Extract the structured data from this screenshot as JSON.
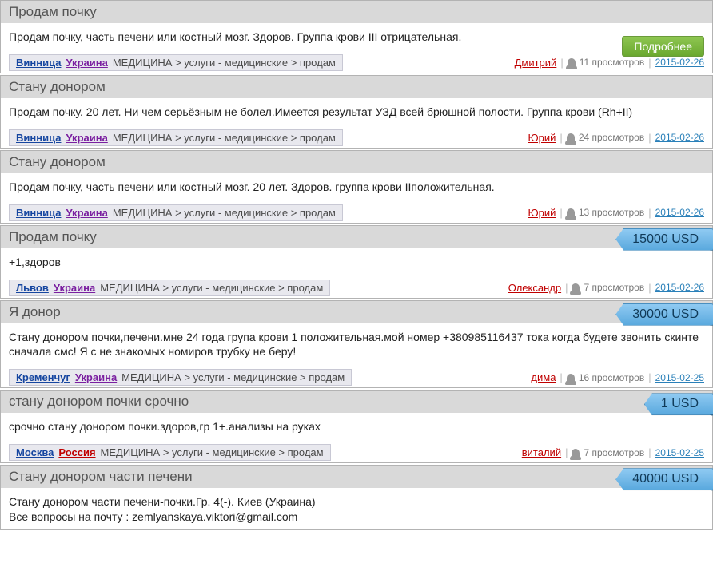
{
  "more_label": "Подробнее",
  "colors": {
    "country_ua": "#7a1fa0",
    "country_ru": "#c00000"
  },
  "listings": [
    {
      "title": "Продам почку",
      "desc": "Продам почку, часть печени или костный мозг. Здоров. Группа крови III отрицательная.",
      "city": "Винница",
      "country": "Украина",
      "country_color": "#7a1fa0",
      "category": "МЕДИЦИНА > услуги - медицинские > продам",
      "author": "Дмитрий",
      "views": "11 просмотров",
      "date": "2015-02-26",
      "show_more": true,
      "price": null
    },
    {
      "title": "Стану донором",
      "desc": "Продам почку. 20 лет. Ни чем серьёзным не болел.Имеется результат УЗД всей брюшной полости. Группа крови (Rh+II)",
      "city": "Винница",
      "country": "Украина",
      "country_color": "#7a1fa0",
      "category": "МЕДИЦИНА > услуги - медицинские > продам",
      "author": "Юрий",
      "views": "24 просмотров",
      "date": "2015-02-26",
      "show_more": false,
      "price": null
    },
    {
      "title": "Стану донором",
      "desc": "Продам почку, часть печени или костный мозг. 20 лет. Здоров. группа крови IIположительная.",
      "city": "Винница",
      "country": "Украина",
      "country_color": "#7a1fa0",
      "category": "МЕДИЦИНА > услуги - медицинские > продам",
      "author": "Юрий",
      "views": "13 просмотров",
      "date": "2015-02-26",
      "show_more": false,
      "price": null
    },
    {
      "title": "Продам почку",
      "desc": "+1,здоров",
      "city": "Львов",
      "country": "Украина",
      "country_color": "#7a1fa0",
      "category": "МЕДИЦИНА > услуги - медицинские > продам",
      "author": "Олександр",
      "views": "7 просмотров",
      "date": "2015-02-26",
      "show_more": false,
      "price": "15000 USD"
    },
    {
      "title": "Я донор",
      "desc": "Стану донором почки,печени.мне 24 года група крови 1 положительная.мой номер +380985116437 тока когда будете звонить скинте сначала смс! Я с не знакомых номиров трубку не беру!",
      "city": "Кременчуг",
      "country": "Украина",
      "country_color": "#7a1fa0",
      "category": "МЕДИЦИНА > услуги - медицинские > продам",
      "author": "дима",
      "views": "16 просмотров",
      "date": "2015-02-25",
      "show_more": false,
      "price": "30000 USD"
    },
    {
      "title": "стану донором почки срочно",
      "desc": "срочно стану донором почки.здоров,гр 1+.анализы на руках",
      "city": "Москва",
      "country": "Россия",
      "country_color": "#c00000",
      "category": "МЕДИЦИНА > услуги - медицинские > продам",
      "author": "виталий",
      "views": "7 просмотров",
      "date": "2015-02-25",
      "show_more": false,
      "price": "1 USD"
    },
    {
      "title": "Стану донором части печени",
      "desc": "Стану донором части печени-почки.Гр. 4(-). Киев (Украина)\nВсе вопросы на почту : zemlyanskaya.viktori@gmail.com",
      "city": null,
      "country": null,
      "country_color": null,
      "category": null,
      "author": null,
      "views": null,
      "date": null,
      "show_more": false,
      "price": "40000 USD"
    }
  ]
}
